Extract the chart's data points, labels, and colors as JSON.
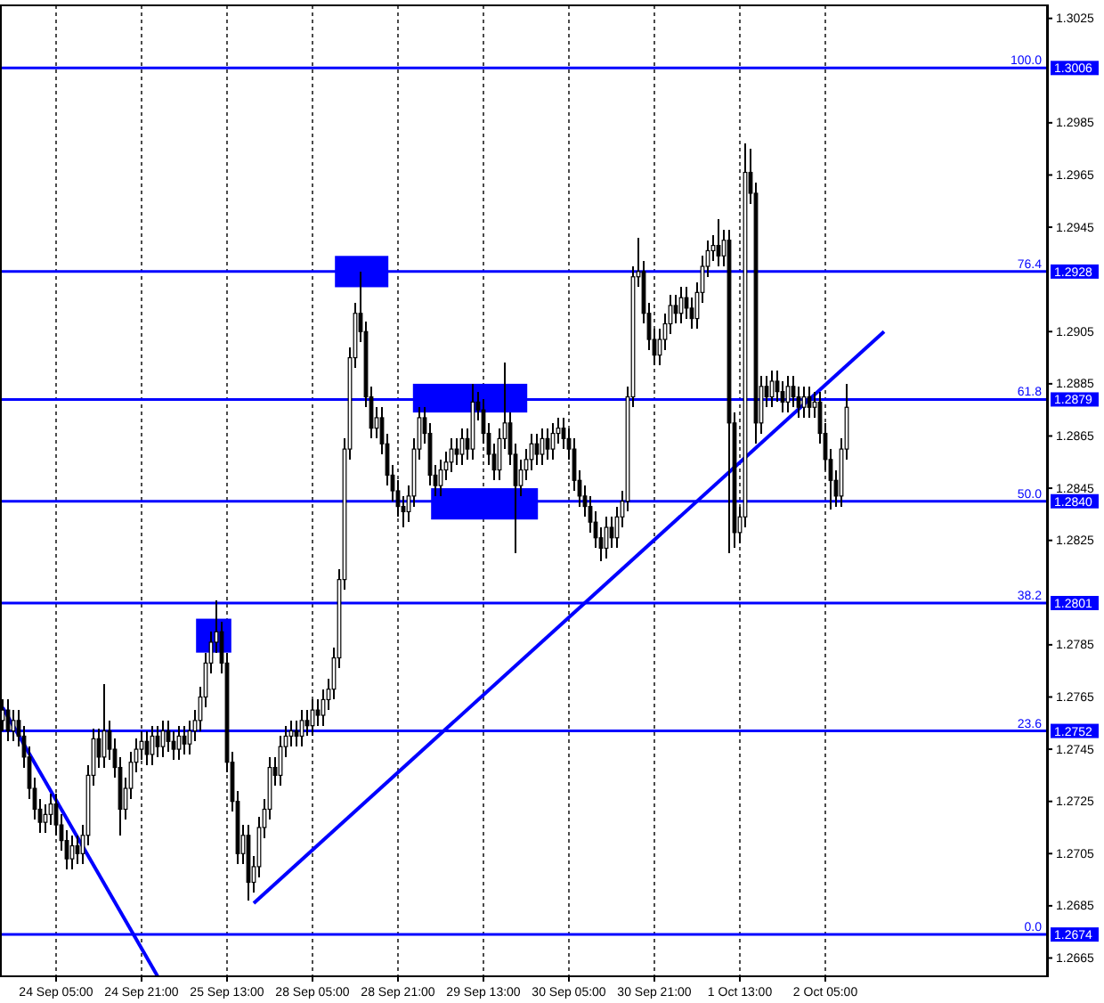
{
  "chart_data": {
    "type": "candlestick",
    "categories": [
      null,
      null,
      null,
      null,
      null,
      null,
      null,
      null,
      null,
      null,
      "24 Sep 05:00",
      null,
      null,
      null,
      null,
      null,
      null,
      null,
      null,
      null,
      null,
      null,
      null,
      null,
      null,
      null,
      "24 Sep 21:00",
      null,
      null,
      null,
      null,
      null,
      null,
      null,
      null,
      null,
      null,
      null,
      null,
      null,
      null,
      null,
      "25 Sep 13:00",
      null,
      null,
      null,
      null,
      null,
      null,
      null,
      null,
      null,
      null,
      null,
      null,
      null,
      null,
      null,
      "28 Sep 05:00",
      null,
      null,
      null,
      null,
      null,
      null,
      null,
      null,
      null,
      null,
      null,
      null,
      null,
      null,
      null,
      "28 Sep 21:00",
      null,
      null,
      null,
      null,
      null,
      null,
      null,
      null,
      null,
      null,
      null,
      null,
      null,
      null,
      null,
      "29 Sep 13:00",
      null,
      null,
      null,
      null,
      null,
      null,
      null,
      null,
      null,
      null,
      null,
      null,
      null,
      null,
      null,
      "30 Sep 05:00",
      null,
      null,
      null,
      null,
      null,
      null,
      null,
      null,
      null,
      null,
      null,
      null,
      null,
      null,
      null,
      "30 Sep 21:00",
      null,
      null,
      null,
      null,
      null,
      null,
      null,
      null,
      null,
      null,
      null,
      null,
      null,
      null,
      null,
      "1 Oct 13:00",
      null,
      null,
      null,
      null,
      null,
      null,
      null,
      null,
      null,
      null,
      null,
      null,
      null,
      null,
      null,
      "2 Oct 05:00",
      null,
      null,
      null,
      null,
      null,
      null,
      null,
      null,
      null,
      null,
      null,
      null,
      null,
      null,
      null,
      null,
      null,
      null,
      null,
      null,
      null,
      null,
      null,
      null,
      null,
      null,
      null,
      null,
      null,
      null,
      null,
      null,
      null,
      null,
      null,
      null,
      null,
      null,
      null,
      null,
      null
    ],
    "ohlc": [
      [
        1.2756,
        1.2764,
        1.2752,
        1.276
      ],
      [
        1.276,
        1.2764,
        1.2748,
        1.2752
      ],
      [
        1.2752,
        1.276,
        1.2748,
        1.2756
      ],
      [
        1.2756,
        1.276,
        1.2746,
        1.275
      ],
      [
        1.275,
        1.2754,
        1.2738,
        1.2742
      ],
      [
        1.2742,
        1.2746,
        1.2726,
        1.273
      ],
      [
        1.273,
        1.2734,
        1.2718,
        1.2722
      ],
      [
        1.2722,
        1.2726,
        1.2713,
        1.2717
      ],
      [
        1.2717,
        1.2724,
        1.2713,
        1.272
      ],
      [
        1.272,
        1.2728,
        1.2716,
        1.2724
      ],
      [
        1.2724,
        1.2728,
        1.2712,
        1.2716
      ],
      [
        1.2716,
        1.272,
        1.2706,
        1.271
      ],
      [
        1.271,
        1.2714,
        1.2699,
        1.2703
      ],
      [
        1.2703,
        1.2712,
        1.2699,
        1.2708
      ],
      [
        1.2708,
        1.2712,
        1.2701,
        1.2705
      ],
      [
        1.2705,
        1.2716,
        1.2701,
        1.2712
      ],
      [
        1.2712,
        1.2739,
        1.2708,
        1.2735
      ],
      [
        1.2735,
        1.2753,
        1.2731,
        1.2749
      ],
      [
        1.2749,
        1.2753,
        1.2738,
        1.2742
      ],
      [
        1.2742,
        1.277,
        1.2738,
        1.2752
      ],
      [
        1.2752,
        1.2756,
        1.2741,
        1.2745
      ],
      [
        1.2745,
        1.2749,
        1.2734,
        1.2738
      ],
      [
        1.2738,
        1.2742,
        1.2712,
        1.2722
      ],
      [
        1.2722,
        1.2734,
        1.2718,
        1.273
      ],
      [
        1.273,
        1.2744,
        1.2726,
        1.274
      ],
      [
        1.274,
        1.2749,
        1.2736,
        1.2745
      ],
      [
        1.2745,
        1.2752,
        1.2741,
        1.2748
      ],
      [
        1.2748,
        1.2752,
        1.2739,
        1.2743
      ],
      [
        1.2743,
        1.2754,
        1.2739,
        1.275
      ],
      [
        1.275,
        1.2754,
        1.2742,
        1.2746
      ],
      [
        1.2746,
        1.2756,
        1.2742,
        1.2752
      ],
      [
        1.2752,
        1.2756,
        1.2744,
        1.2748
      ],
      [
        1.2748,
        1.2752,
        1.2741,
        1.2745
      ],
      [
        1.2745,
        1.2754,
        1.2741,
        1.275
      ],
      [
        1.275,
        1.2754,
        1.2743,
        1.2747
      ],
      [
        1.2747,
        1.2756,
        1.2743,
        1.2752
      ],
      [
        1.2752,
        1.276,
        1.2748,
        1.2756
      ],
      [
        1.2756,
        1.2769,
        1.2752,
        1.2765
      ],
      [
        1.2765,
        1.2782,
        1.2761,
        1.2778
      ],
      [
        1.2778,
        1.279,
        1.2774,
        1.2786
      ],
      [
        1.2786,
        1.2802,
        1.2782,
        1.279
      ],
      [
        1.279,
        1.2794,
        1.2774,
        1.2778
      ],
      [
        1.2778,
        1.2782,
        1.2736,
        1.274
      ],
      [
        1.274,
        1.2744,
        1.2721,
        1.2725
      ],
      [
        1.2725,
        1.2729,
        1.2701,
        1.2705
      ],
      [
        1.2705,
        1.2716,
        1.2701,
        1.2712
      ],
      [
        1.2712,
        1.2716,
        1.2687,
        1.2694
      ],
      [
        1.2694,
        1.2704,
        1.269,
        1.27
      ],
      [
        1.27,
        1.2719,
        1.2696,
        1.2715
      ],
      [
        1.2715,
        1.2726,
        1.2711,
        1.2722
      ],
      [
        1.2722,
        1.2742,
        1.2718,
        1.2738
      ],
      [
        1.2738,
        1.2742,
        1.2731,
        1.2735
      ],
      [
        1.2735,
        1.275,
        1.2731,
        1.2746
      ],
      [
        1.2746,
        1.2754,
        1.2742,
        1.275
      ],
      [
        1.275,
        1.2756,
        1.2746,
        1.2752
      ],
      [
        1.2752,
        1.2756,
        1.2746,
        1.275
      ],
      [
        1.275,
        1.276,
        1.2746,
        1.2756
      ],
      [
        1.2756,
        1.276,
        1.275,
        1.2754
      ],
      [
        1.2754,
        1.2764,
        1.275,
        1.276
      ],
      [
        1.276,
        1.2764,
        1.2754,
        1.2758
      ],
      [
        1.2758,
        1.2768,
        1.2754,
        1.2764
      ],
      [
        1.2764,
        1.2772,
        1.276,
        1.2768
      ],
      [
        1.2768,
        1.2784,
        1.2764,
        1.278
      ],
      [
        1.278,
        1.2814,
        1.2776,
        1.281
      ],
      [
        1.281,
        1.2864,
        1.2806,
        1.286
      ],
      [
        1.286,
        1.2899,
        1.2856,
        1.2895
      ],
      [
        1.2895,
        1.2916,
        1.2891,
        1.2912
      ],
      [
        1.2912,
        1.2928,
        1.2901,
        1.2905
      ],
      [
        1.2905,
        1.2909,
        1.2876,
        1.288
      ],
      [
        1.288,
        1.2884,
        1.2864,
        1.2868
      ],
      [
        1.2868,
        1.2876,
        1.2864,
        1.2872
      ],
      [
        1.2872,
        1.2876,
        1.2858,
        1.2862
      ],
      [
        1.2862,
        1.2866,
        1.2846,
        1.285
      ],
      [
        1.285,
        1.2854,
        1.284,
        1.2844
      ],
      [
        1.2844,
        1.2848,
        1.2834,
        1.2838
      ],
      [
        1.2838,
        1.2842,
        1.283,
        1.2836
      ],
      [
        1.2836,
        1.2846,
        1.2832,
        1.2842
      ],
      [
        1.2842,
        1.2864,
        1.2838,
        1.286
      ],
      [
        1.286,
        1.2876,
        1.2856,
        1.2872
      ],
      [
        1.2872,
        1.2876,
        1.2862,
        1.2866
      ],
      [
        1.2866,
        1.287,
        1.2846,
        1.285
      ],
      [
        1.285,
        1.2854,
        1.2842,
        1.2846
      ],
      [
        1.2846,
        1.2856,
        1.2842,
        1.2852
      ],
      [
        1.2852,
        1.2859,
        1.2848,
        1.2855
      ],
      [
        1.2855,
        1.2864,
        1.2851,
        1.286
      ],
      [
        1.286,
        1.2864,
        1.2854,
        1.2858
      ],
      [
        1.2858,
        1.2868,
        1.2854,
        1.2864
      ],
      [
        1.2864,
        1.2868,
        1.2856,
        1.286
      ],
      [
        1.286,
        1.2885,
        1.2856,
        1.2878
      ],
      [
        1.2878,
        1.2882,
        1.2871,
        1.2875
      ],
      [
        1.2875,
        1.2879,
        1.2862,
        1.2866
      ],
      [
        1.2866,
        1.287,
        1.2854,
        1.2858
      ],
      [
        1.2858,
        1.2862,
        1.2848,
        1.2852
      ],
      [
        1.2852,
        1.2868,
        1.2848,
        1.2864
      ],
      [
        1.2864,
        1.2893,
        1.286,
        1.287
      ],
      [
        1.287,
        1.2874,
        1.2854,
        1.2858
      ],
      [
        1.2858,
        1.2862,
        1.282,
        1.2846
      ],
      [
        1.2846,
        1.2856,
        1.2842,
        1.2852
      ],
      [
        1.2852,
        1.286,
        1.2848,
        1.2856
      ],
      [
        1.2856,
        1.2866,
        1.2852,
        1.2862
      ],
      [
        1.2862,
        1.2866,
        1.2854,
        1.2858
      ],
      [
        1.2858,
        1.2868,
        1.2854,
        1.2864
      ],
      [
        1.2864,
        1.2868,
        1.2856,
        1.286
      ],
      [
        1.286,
        1.287,
        1.2856,
        1.2866
      ],
      [
        1.2866,
        1.2872,
        1.2862,
        1.2868
      ],
      [
        1.2868,
        1.2872,
        1.286,
        1.2864
      ],
      [
        1.2864,
        1.2868,
        1.2856,
        1.286
      ],
      [
        1.286,
        1.2864,
        1.2844,
        1.2848
      ],
      [
        1.2848,
        1.2852,
        1.2838,
        1.2842
      ],
      [
        1.2842,
        1.2846,
        1.2834,
        1.2838
      ],
      [
        1.2838,
        1.2842,
        1.2828,
        1.2832
      ],
      [
        1.2832,
        1.2836,
        1.2822,
        1.2826
      ],
      [
        1.2826,
        1.283,
        1.2817,
        1.2822
      ],
      [
        1.2822,
        1.2834,
        1.2818,
        1.283
      ],
      [
        1.283,
        1.2834,
        1.2822,
        1.2826
      ],
      [
        1.2826,
        1.2838,
        1.2822,
        1.2834
      ],
      [
        1.2834,
        1.2844,
        1.283,
        1.284
      ],
      [
        1.284,
        1.2884,
        1.2836,
        1.288
      ],
      [
        1.288,
        1.293,
        1.2876,
        1.2926
      ],
      [
        1.2926,
        1.2941,
        1.2922,
        1.2928
      ],
      [
        1.2928,
        1.2932,
        1.2908,
        1.2912
      ],
      [
        1.2912,
        1.2916,
        1.2898,
        1.2902
      ],
      [
        1.2902,
        1.2906,
        1.2892,
        1.2896
      ],
      [
        1.2896,
        1.2906,
        1.2892,
        1.2902
      ],
      [
        1.2902,
        1.2912,
        1.2898,
        1.2908
      ],
      [
        1.2908,
        1.2919,
        1.2904,
        1.2915
      ],
      [
        1.2915,
        1.2919,
        1.2908,
        1.2912
      ],
      [
        1.2912,
        1.2922,
        1.2908,
        1.2918
      ],
      [
        1.2918,
        1.2922,
        1.291,
        1.2914
      ],
      [
        1.2914,
        1.2918,
        1.2906,
        1.291
      ],
      [
        1.291,
        1.2924,
        1.2906,
        1.292
      ],
      [
        1.292,
        1.2934,
        1.2916,
        1.293
      ],
      [
        1.293,
        1.294,
        1.2926,
        1.2936
      ],
      [
        1.2936,
        1.2942,
        1.2932,
        1.2938
      ],
      [
        1.2938,
        1.2948,
        1.293,
        1.2934
      ],
      [
        1.2934,
        1.2944,
        1.293,
        1.294
      ],
      [
        1.294,
        1.2944,
        1.282,
        1.287
      ],
      [
        1.287,
        1.2874,
        1.2822,
        1.2828
      ],
      [
        1.2828,
        1.2838,
        1.2824,
        1.2834
      ],
      [
        1.2834,
        1.2977,
        1.283,
        1.2966
      ],
      [
        1.2966,
        1.2975,
        1.2954,
        1.2958
      ],
      [
        1.2958,
        1.2962,
        1.2862,
        1.287
      ],
      [
        1.287,
        1.2888,
        1.2866,
        1.2884
      ],
      [
        1.2884,
        1.2888,
        1.2876,
        1.288
      ],
      [
        1.288,
        1.289,
        1.2876,
        1.2886
      ],
      [
        1.2886,
        1.289,
        1.2878,
        1.2882
      ],
      [
        1.2882,
        1.2886,
        1.2874,
        1.2878
      ],
      [
        1.2878,
        1.2888,
        1.2874,
        1.2884
      ],
      [
        1.2884,
        1.2888,
        1.2876,
        1.288
      ],
      [
        1.288,
        1.2884,
        1.2872,
        1.2876
      ],
      [
        1.2876,
        1.2884,
        1.2872,
        1.288
      ],
      [
        1.288,
        1.2884,
        1.2872,
        1.2876
      ],
      [
        1.2876,
        1.2882,
        1.2872,
        1.2878
      ],
      [
        1.2878,
        1.2882,
        1.2862,
        1.2866
      ],
      [
        1.2866,
        1.287,
        1.2852,
        1.2856
      ],
      [
        1.2856,
        1.286,
        1.2837,
        1.2848
      ],
      [
        1.2848,
        1.2852,
        1.2838,
        1.2842
      ],
      [
        1.2842,
        1.2864,
        1.2838,
        1.286
      ],
      [
        1.286,
        1.2885,
        1.2856,
        1.2876
      ],
      null,
      null,
      null,
      null,
      null,
      null,
      null,
      null,
      null,
      null,
      null,
      null,
      null,
      null,
      null,
      null,
      null,
      null,
      null,
      null,
      null,
      null,
      null,
      null,
      null,
      null,
      null,
      null,
      null,
      null,
      null,
      null,
      null,
      null,
      null,
      null,
      null
    ],
    "series": [
      {
        "type": "line",
        "color": "#0000ff",
        "values": [
          1.2761,
          null,
          null,
          null,
          null,
          null,
          null,
          null,
          null,
          null,
          null,
          null,
          null,
          null,
          null,
          null,
          null,
          null,
          null,
          null,
          null,
          null,
          null,
          null,
          null,
          null,
          null,
          null,
          null,
          1.2658,
          null,
          null,
          null,
          null,
          null,
          null,
          null,
          null,
          null,
          null,
          null,
          null,
          null,
          null,
          null,
          null,
          null,
          null,
          null,
          null,
          null,
          null,
          null,
          null,
          null,
          null,
          null,
          null,
          null,
          null,
          null,
          null,
          null,
          null,
          null,
          null,
          null,
          null,
          null,
          null,
          null,
          null,
          null,
          null,
          null,
          null,
          null,
          null,
          null,
          null,
          null,
          null,
          null,
          null,
          null,
          null,
          null,
          null,
          null,
          null,
          null,
          null,
          null,
          null,
          null,
          null,
          null,
          null,
          null,
          null,
          null,
          null,
          null,
          null,
          null,
          null,
          null,
          null,
          null,
          null,
          null,
          null,
          null,
          null,
          null,
          null,
          null,
          null,
          null,
          null,
          null,
          null,
          null,
          null,
          null,
          null,
          null,
          null,
          null,
          null,
          null,
          null,
          null,
          null,
          null,
          null,
          null,
          null,
          null,
          null,
          null,
          null,
          null,
          null,
          null,
          null,
          null,
          null,
          null,
          null,
          null,
          null,
          null,
          null,
          null,
          null,
          null,
          null,
          null,
          null,
          null,
          null,
          null,
          null,
          null,
          null,
          null,
          null,
          null,
          null,
          null,
          null,
          null,
          null,
          null,
          null,
          null,
          null,
          null,
          null,
          null,
          null,
          null,
          null,
          null,
          null,
          null,
          null,
          null,
          null,
          null,
          null,
          null,
          null,
          null,
          null
        ]
      },
      {
        "type": "line",
        "color": "#0000ff",
        "values": [
          null,
          null,
          null,
          null,
          null,
          null,
          null,
          null,
          null,
          null,
          null,
          null,
          null,
          null,
          null,
          null,
          null,
          null,
          null,
          null,
          null,
          null,
          null,
          null,
          null,
          null,
          null,
          null,
          null,
          null,
          null,
          null,
          null,
          null,
          null,
          null,
          null,
          null,
          null,
          null,
          null,
          null,
          null,
          null,
          null,
          null,
          null,
          1.2686,
          null,
          null,
          null,
          null,
          null,
          null,
          null,
          null,
          null,
          null,
          null,
          null,
          null,
          null,
          null,
          null,
          null,
          null,
          null,
          null,
          null,
          null,
          null,
          null,
          null,
          null,
          null,
          null,
          null,
          null,
          null,
          null,
          null,
          null,
          null,
          null,
          null,
          null,
          null,
          null,
          null,
          null,
          null,
          null,
          null,
          null,
          null,
          null,
          null,
          null,
          null,
          null,
          null,
          null,
          null,
          null,
          null,
          null,
          null,
          null,
          null,
          null,
          null,
          null,
          null,
          null,
          null,
          null,
          null,
          null,
          null,
          null,
          null,
          null,
          null,
          null,
          null,
          null,
          null,
          null,
          null,
          null,
          null,
          null,
          null,
          null,
          null,
          null,
          null,
          null,
          null,
          null,
          null,
          null,
          null,
          null,
          null,
          null,
          null,
          null,
          null,
          null,
          null,
          null,
          null,
          null,
          null,
          null,
          null,
          null,
          null,
          null,
          null,
          null,
          null,
          null,
          null,
          1.2905,
          null,
          null,
          null,
          null,
          null,
          null,
          null,
          null,
          null,
          null,
          null,
          null,
          null,
          null,
          null,
          null,
          null,
          null,
          null,
          null,
          null,
          null,
          null,
          null,
          null,
          null,
          null,
          null,
          null,
          null
        ]
      }
    ],
    "ylim": [
      1.2658,
      1.303
    ],
    "yticks": [
      1.3025,
      1.2985,
      1.2965,
      1.2945,
      1.2905,
      1.2885,
      1.2865,
      1.2845,
      1.2825,
      1.2785,
      1.2765,
      1.2745,
      1.2725,
      1.2705,
      1.2685,
      1.2665
    ],
    "ref_lines": [
      {
        "axis": "y",
        "value": 1.3006,
        "label": "1.3006",
        "color": "#0000ff"
      },
      {
        "axis": "y",
        "value": 1.2928,
        "label": "1.2928",
        "color": "#0000ff"
      },
      {
        "axis": "y",
        "value": 1.2879,
        "label": "1.2879",
        "color": "#0000ff"
      },
      {
        "axis": "y",
        "value": 1.284,
        "label": "1.2840",
        "color": "#0000ff"
      },
      {
        "axis": "y",
        "value": 1.2801,
        "label": "1.2801",
        "color": "#0000ff"
      },
      {
        "axis": "y",
        "value": 1.2752,
        "label": "1.2752",
        "color": "#0000ff"
      },
      {
        "axis": "y",
        "value": 1.2674,
        "label": "1.2674",
        "color": "#0000ff"
      }
    ],
    "annotations": [
      {
        "text": "100.0",
        "y": 1.3006
      },
      {
        "text": "76.4",
        "y": 1.2928
      },
      {
        "text": "61.8",
        "y": 1.2879
      },
      {
        "text": "50.0",
        "y": 1.284
      },
      {
        "text": "38.2",
        "y": 1.2801
      },
      {
        "text": "23.6",
        "y": 1.2752
      },
      {
        "text": "0.0",
        "y": 1.2674
      }
    ],
    "grid": "x"
  }
}
